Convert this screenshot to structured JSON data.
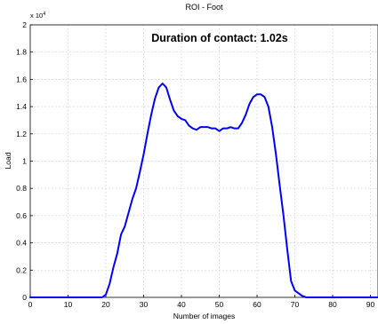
{
  "chart_data": {
    "type": "line",
    "title": "ROI - Foot",
    "annotation": "Duration of contact: 1.02s",
    "xlabel": "Number of images",
    "ylabel": "Load",
    "y_exponent_base": "x 10",
    "y_exponent_power": "4",
    "xlim": [
      0,
      92
    ],
    "ylim": [
      0,
      2
    ],
    "xticks": [
      0,
      10,
      20,
      30,
      40,
      50,
      60,
      70,
      80,
      90
    ],
    "xtick_labels": [
      "0",
      "10",
      "20",
      "30",
      "40",
      "50",
      "60",
      "70",
      "80",
      "90"
    ],
    "yticks": [
      0,
      0.2,
      0.4,
      0.6,
      0.8,
      1,
      1.2,
      1.4,
      1.6,
      1.8,
      2
    ],
    "ytick_labels": [
      "0",
      "0.2",
      "0.4",
      "0.6",
      "0.8",
      "1",
      "1.2",
      "1.4",
      "1.6",
      "1.8",
      "2"
    ],
    "grid": true,
    "line_color": "#0000ff",
    "series": [
      {
        "x": [
          0,
          5,
          10,
          15,
          19,
          20,
          21,
          22,
          23,
          24,
          25,
          26,
          27,
          28,
          29,
          30,
          31,
          32,
          33,
          34,
          35,
          36,
          37,
          38,
          39,
          40,
          41,
          42,
          43,
          44,
          45,
          46,
          47,
          48,
          49,
          50,
          51,
          52,
          53,
          54,
          55,
          56,
          57,
          58,
          59,
          60,
          61,
          62,
          63,
          64,
          65,
          66,
          67,
          68,
          69,
          70,
          71,
          72,
          73,
          74,
          75,
          80,
          85,
          90,
          92
        ],
        "y": [
          0,
          0,
          0,
          0,
          0,
          0.02,
          0.1,
          0.22,
          0.32,
          0.46,
          0.52,
          0.62,
          0.72,
          0.8,
          0.92,
          1.05,
          1.2,
          1.34,
          1.46,
          1.54,
          1.57,
          1.54,
          1.45,
          1.37,
          1.33,
          1.31,
          1.3,
          1.26,
          1.24,
          1.23,
          1.25,
          1.25,
          1.25,
          1.24,
          1.24,
          1.22,
          1.24,
          1.24,
          1.25,
          1.24,
          1.24,
          1.28,
          1.34,
          1.42,
          1.47,
          1.49,
          1.49,
          1.47,
          1.4,
          1.25,
          1.05,
          0.82,
          0.6,
          0.35,
          0.12,
          0.05,
          0.03,
          0.01,
          0,
          0,
          0,
          0,
          0,
          0,
          0
        ]
      }
    ]
  }
}
